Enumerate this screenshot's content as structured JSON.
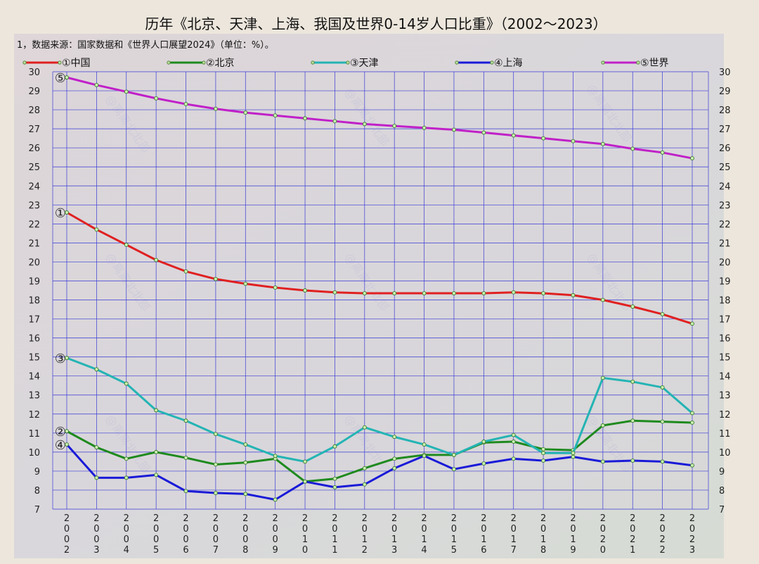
{
  "chart_data": {
    "type": "line",
    "title": "历年《北京、天津、上海、我国及世界0-14岁人口比重》（2002～2023）",
    "subtitle": "1，数据来源：国家数据和《世界人口展望2024》（单位：%）。",
    "legend_position": "top",
    "grid": true,
    "ylim": [
      7,
      30
    ],
    "y_ticks": [
      7,
      8,
      9,
      10,
      11,
      12,
      13,
      14,
      15,
      16,
      17,
      18,
      19,
      20,
      21,
      22,
      23,
      24,
      25,
      26,
      27,
      28,
      29,
      30
    ],
    "x": [
      "2002",
      "2003",
      "2004",
      "2005",
      "2006",
      "2007",
      "2008",
      "2009",
      "2010",
      "2011",
      "2012",
      "2013",
      "2014",
      "2015",
      "2016",
      "2017",
      "2018",
      "2019",
      "2020",
      "2021",
      "2022",
      "2023"
    ],
    "series": [
      {
        "name": "①中国",
        "marker": "①",
        "color": "#e02020",
        "values": [
          22.6,
          21.7,
          20.9,
          20.1,
          19.5,
          19.1,
          18.85,
          18.65,
          18.5,
          18.4,
          18.35,
          18.35,
          18.35,
          18.35,
          18.35,
          18.4,
          18.35,
          18.25,
          18.0,
          17.65,
          17.25,
          16.75
        ]
      },
      {
        "name": "②北京",
        "marker": "②",
        "color": "#1e8a1e",
        "values": [
          11.1,
          10.25,
          9.65,
          10.0,
          9.7,
          9.35,
          9.45,
          9.65,
          8.45,
          8.6,
          9.15,
          9.65,
          9.85,
          9.85,
          10.5,
          10.55,
          10.15,
          10.1,
          11.4,
          11.65,
          11.6,
          11.55
        ]
      },
      {
        "name": "③天津",
        "marker": "③",
        "color": "#24b4b4",
        "values": [
          14.95,
          14.35,
          13.6,
          12.2,
          11.65,
          10.95,
          10.4,
          9.8,
          9.5,
          10.3,
          11.3,
          10.8,
          10.4,
          9.85,
          10.55,
          10.9,
          9.95,
          9.95,
          13.9,
          13.7,
          13.4,
          12.05
        ]
      },
      {
        "name": "④上海",
        "marker": "④",
        "color": "#1a1ad8",
        "values": [
          10.4,
          8.65,
          8.65,
          8.8,
          7.95,
          7.85,
          7.8,
          7.5,
          8.45,
          8.15,
          8.3,
          9.15,
          9.8,
          9.1,
          9.4,
          9.65,
          9.55,
          9.75,
          9.5,
          9.55,
          9.5,
          9.3
        ]
      },
      {
        "name": "⑤世界",
        "marker": "⑤",
        "color": "#c020c8",
        "values": [
          29.7,
          29.3,
          28.95,
          28.6,
          28.3,
          28.05,
          27.85,
          27.7,
          27.55,
          27.4,
          27.25,
          27.15,
          27.05,
          26.95,
          26.8,
          26.65,
          26.5,
          26.35,
          26.2,
          25.95,
          25.75,
          25.45
        ]
      }
    ],
    "watermark": "@离离北北部",
    "colors": {
      "plot_background": "#dcdcdc",
      "grid": "#3b3bd6",
      "page_background": "#ece6dc"
    }
  }
}
